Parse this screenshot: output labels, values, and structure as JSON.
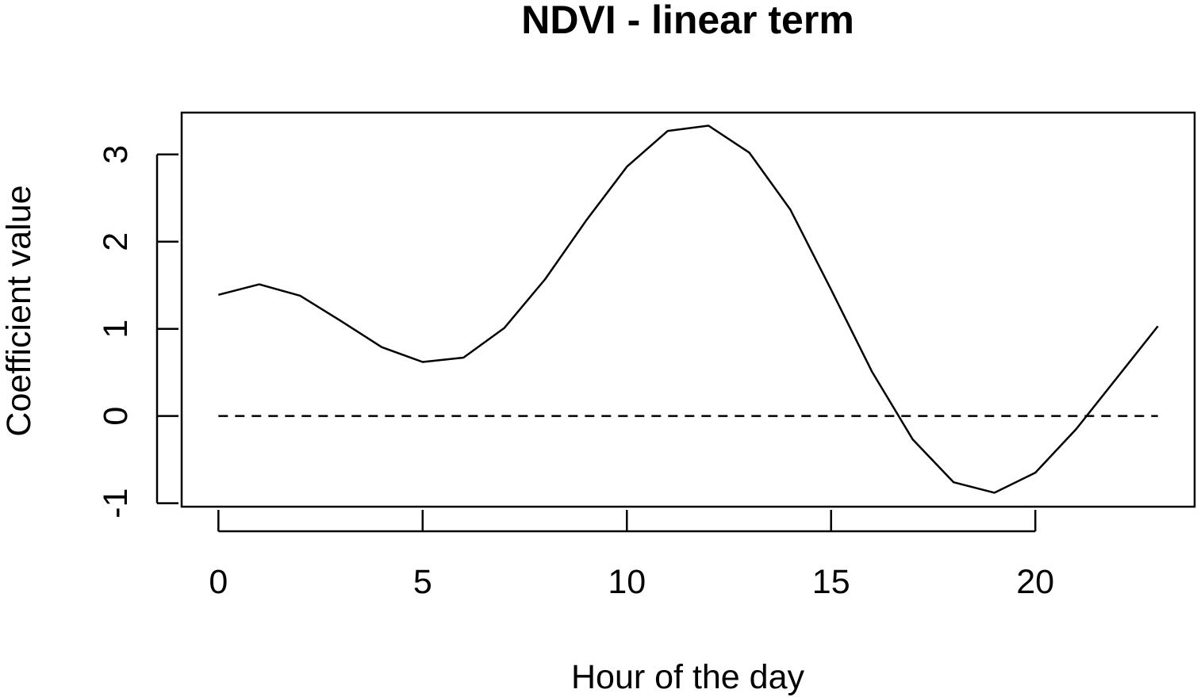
{
  "chart_data": {
    "type": "line",
    "title": "NDVI - linear term",
    "xlabel": "Hour of the day",
    "ylabel": "Coefficient value",
    "xlim": [
      -0.9,
      23.9
    ],
    "ylim": [
      -1.04,
      3.48
    ],
    "x_ticks": [
      0,
      5,
      10,
      15,
      20
    ],
    "y_ticks": [
      -1,
      0,
      1,
      2,
      3
    ],
    "x_tick_labels": [
      "0",
      "5",
      "10",
      "15",
      "20"
    ],
    "y_tick_labels": [
      "-1",
      "0",
      "1",
      "2",
      "3"
    ],
    "grid": false,
    "legend": "none",
    "series": [
      {
        "style": "solid",
        "color": "#000000",
        "x": [
          0,
          1,
          2,
          3,
          4,
          5,
          6,
          7,
          8,
          9,
          10,
          11,
          12,
          13,
          14,
          15,
          16,
          17,
          18,
          19,
          20,
          21,
          22,
          23
        ],
        "values": [
          1.39,
          1.51,
          1.38,
          1.09,
          0.79,
          0.62,
          0.67,
          1.01,
          1.57,
          2.24,
          2.86,
          3.27,
          3.33,
          3.02,
          2.37,
          1.45,
          0.51,
          -0.27,
          -0.76,
          -0.88,
          -0.65,
          -0.15,
          0.44,
          1.03
        ]
      },
      {
        "style": "dashed",
        "color": "#000000",
        "x": [
          0,
          23
        ],
        "values": [
          0,
          0
        ]
      }
    ]
  }
}
